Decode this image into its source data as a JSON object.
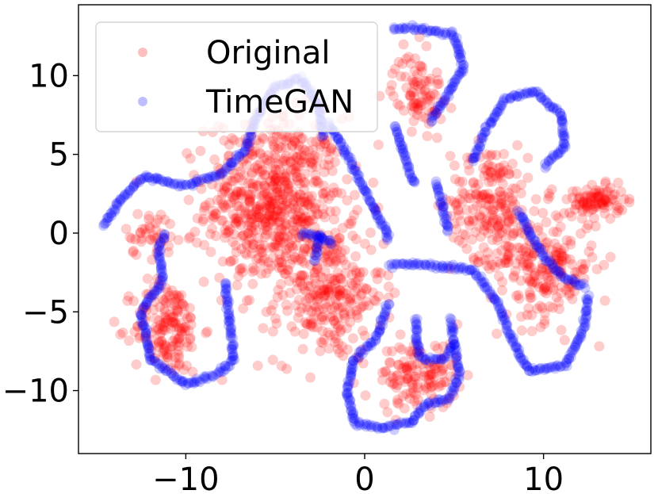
{
  "chart_data": {
    "type": "scatter",
    "title": "",
    "xlabel": "",
    "ylabel": "",
    "xlim": [
      -16,
      16
    ],
    "ylim": [
      -14,
      14.5
    ],
    "xticks": [
      -10,
      0,
      10
    ],
    "yticks": [
      -10,
      -5,
      0,
      5,
      10
    ],
    "xtick_labels": [
      "−10",
      "0",
      "10"
    ],
    "ytick_labels": [
      "−10",
      "−5",
      "0",
      "5",
      "10"
    ],
    "grid": false,
    "legend_position": "top-left",
    "legend": [
      {
        "label": "Original",
        "color": "#ff0000"
      },
      {
        "label": "TimeGAN",
        "color": "#0000ff"
      }
    ],
    "series": [
      {
        "name": "Original",
        "color": "#ff0000",
        "alpha": 0.2,
        "clusters": [
          {
            "center": [
              -5,
              2
            ],
            "spread": [
              3.2,
              4.5
            ],
            "count": 650
          },
          {
            "center": [
              -2,
              -4
            ],
            "spread": [
              2.5,
              3.5
            ],
            "count": 260
          },
          {
            "center": [
              -11,
              -6
            ],
            "spread": [
              1.6,
              2.5
            ],
            "count": 160
          },
          {
            "center": [
              7,
              2
            ],
            "spread": [
              1.8,
              3
            ],
            "count": 190
          },
          {
            "center": [
              10,
              -2
            ],
            "spread": [
              2.5,
              3
            ],
            "count": 220
          },
          {
            "center": [
              13,
              2
            ],
            "spread": [
              1.3,
              0.8
            ],
            "count": 90
          },
          {
            "center": [
              3,
              -9
            ],
            "spread": [
              1.8,
              1.8
            ],
            "count": 130
          },
          {
            "center": [
              3,
              9
            ],
            "spread": [
              1.2,
              2
            ],
            "count": 90
          },
          {
            "center": [
              -12,
              0
            ],
            "spread": [
              1.2,
              1.2
            ],
            "count": 40
          }
        ]
      },
      {
        "name": "TimeGAN",
        "color": "#0000ff",
        "alpha": 0.2,
        "curves": [
          [
            [
              -14.6,
              0.5
            ],
            [
              -13.5,
              2.3
            ],
            [
              -12.3,
              3.6
            ],
            [
              -10,
              3
            ],
            [
              -8,
              3.8
            ],
            [
              -6.7,
              5.2
            ],
            [
              -6,
              7.5
            ],
            [
              -5,
              9.3
            ],
            [
              -3.6,
              9.8
            ],
            [
              -2.6,
              8.3
            ],
            [
              -2.3,
              6
            ]
          ],
          [
            [
              -11.2,
              0
            ],
            [
              -11.5,
              -1
            ],
            [
              -11.3,
              -3
            ],
            [
              -12.5,
              -5
            ],
            [
              -12,
              -8
            ],
            [
              -10,
              -9.6
            ],
            [
              -8.3,
              -9
            ],
            [
              -7.3,
              -8
            ],
            [
              -7.5,
              -6
            ],
            [
              -7.8,
              -3
            ]
          ],
          [
            [
              -2,
              7
            ],
            [
              -1,
              5
            ],
            [
              0.3,
              2
            ],
            [
              1.3,
              0
            ],
            [
              1.2,
              -0.5
            ]
          ],
          [
            [
              1.6,
              13
            ],
            [
              3,
              13
            ],
            [
              5,
              12.6
            ],
            [
              5.5,
              10.5
            ],
            [
              4.5,
              8.5
            ],
            [
              3.6,
              7
            ]
          ],
          [
            [
              1.7,
              6.8
            ],
            [
              2.2,
              5
            ],
            [
              2.8,
              3
            ]
          ],
          [
            [
              4,
              3.2
            ],
            [
              4.4,
              1.5
            ],
            [
              4.7,
              0
            ]
          ],
          [
            [
              6,
              4.5
            ],
            [
              6.8,
              6.5
            ],
            [
              7.8,
              8.5
            ],
            [
              9.5,
              9
            ],
            [
              11,
              7.5
            ],
            [
              11.2,
              5.5
            ],
            [
              10,
              4.2
            ]
          ],
          [
            [
              8.6,
              1.4
            ],
            [
              9.2,
              0
            ],
            [
              10,
              -1.5
            ],
            [
              11,
              -2.7
            ],
            [
              12.4,
              -3.4
            ]
          ],
          [
            [
              12.5,
              -4
            ],
            [
              12.3,
              -6
            ],
            [
              11.2,
              -8.4
            ],
            [
              9.2,
              -8.8
            ],
            [
              8.3,
              -7
            ],
            [
              7.5,
              -4.5
            ],
            [
              6,
              -2.3
            ],
            [
              3,
              -2
            ],
            [
              1.3,
              -2
            ]
          ],
          [
            [
              1.3,
              -4.5
            ],
            [
              0.6,
              -6.8
            ],
            [
              -0.6,
              -8
            ],
            [
              -1,
              -10
            ],
            [
              -0.6,
              -12
            ],
            [
              1,
              -12.4
            ],
            [
              2.6,
              -12
            ],
            [
              3.3,
              -11
            ],
            [
              4.7,
              -10.5
            ],
            [
              5.3,
              -9
            ],
            [
              5,
              -7
            ],
            [
              4.8,
              -5.3
            ]
          ],
          [
            [
              2.9,
              -5.5
            ],
            [
              2.9,
              -7
            ],
            [
              3.2,
              -8
            ],
            [
              4.5,
              -8
            ],
            [
              5,
              -7
            ]
          ],
          [
            [
              -2.8,
              -1.7
            ],
            [
              -2.6,
              -0.6
            ],
            [
              -2.5,
              0
            ]
          ],
          [
            [
              -3.5,
              0
            ],
            [
              -2.3,
              -0.3
            ],
            [
              -1.7,
              -0.8
            ]
          ]
        ]
      }
    ]
  }
}
